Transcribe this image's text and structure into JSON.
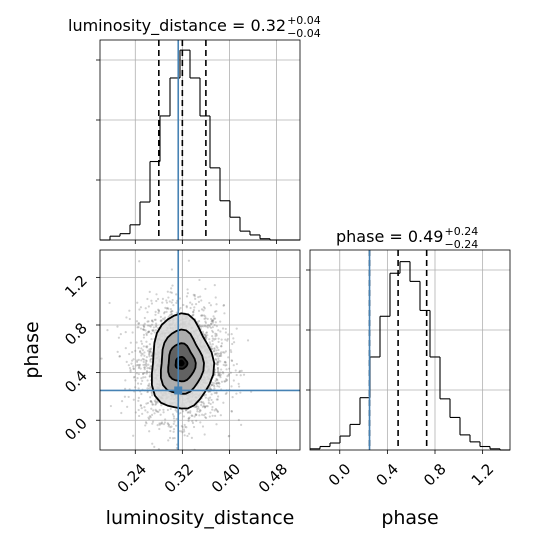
{
  "chart_data": {
    "type": "corner",
    "parameters": [
      "luminosity_distance",
      "phase"
    ],
    "truth": {
      "luminosity_distance": 0.313,
      "phase": 0.25
    },
    "titles": {
      "luminosity_distance": {
        "label": "luminosity_distance",
        "median": "0.32",
        "plus": "+0.04",
        "minus": "−0.04"
      },
      "phase": {
        "label": "phase",
        "median": "0.49",
        "plus": "+0.24",
        "minus": "−0.24"
      }
    },
    "quantiles": {
      "luminosity_distance": [
        0.28,
        0.32,
        0.36
      ],
      "phase": [
        0.25,
        0.49,
        0.73
      ]
    },
    "axes": {
      "luminosity_distance": {
        "range": [
          0.18,
          0.52
        ],
        "ticks": [
          0.24,
          0.32,
          0.4,
          0.48
        ],
        "tick_labels": [
          "0.24",
          "0.32",
          "0.40",
          "0.48"
        ],
        "label": "luminosity_distance"
      },
      "phase": {
        "range": [
          -0.25,
          1.43
        ],
        "ticks": [
          0.0,
          0.4,
          0.8,
          1.2
        ],
        "tick_labels": [
          "0.0",
          "0.4",
          "0.8",
          "1.2"
        ],
        "label": "phase"
      }
    },
    "hist_luminosity_distance": {
      "edges": [
        0.18,
        0.197,
        0.214,
        0.231,
        0.248,
        0.265,
        0.282,
        0.299,
        0.316,
        0.333,
        0.35,
        0.367,
        0.384,
        0.401,
        0.418,
        0.435,
        0.452,
        0.469,
        0.486,
        0.503,
        0.52
      ],
      "counts": [
        0,
        3,
        5,
        12,
        30,
        62,
        98,
        128,
        150,
        128,
        98,
        57,
        31,
        18,
        7,
        4,
        1,
        0,
        0,
        0
      ],
      "ylim": [
        0,
        158
      ]
    },
    "hist_phase": {
      "edges": [
        -0.25,
        -0.166,
        -0.082,
        0.002,
        0.086,
        0.17,
        0.254,
        0.338,
        0.422,
        0.506,
        0.59,
        0.674,
        0.758,
        0.842,
        0.926,
        1.01,
        1.094,
        1.178,
        1.262,
        1.346,
        1.43
      ],
      "counts": [
        1,
        3,
        6,
        12,
        22,
        45,
        80,
        115,
        152,
        162,
        145,
        120,
        80,
        44,
        28,
        13,
        7,
        3,
        1,
        0
      ],
      "ylim": [
        0,
        172
      ]
    },
    "contours": {
      "center": {
        "luminosity_distance": 0.318,
        "phase": 0.48
      },
      "levels": [
        {
          "dx": 0.01,
          "dy": 0.05
        },
        {
          "dx": 0.023,
          "dy": 0.16
        },
        {
          "dx": 0.036,
          "dy": 0.27
        },
        {
          "dx": 0.052,
          "dy": 0.4
        }
      ]
    },
    "grid": true
  }
}
